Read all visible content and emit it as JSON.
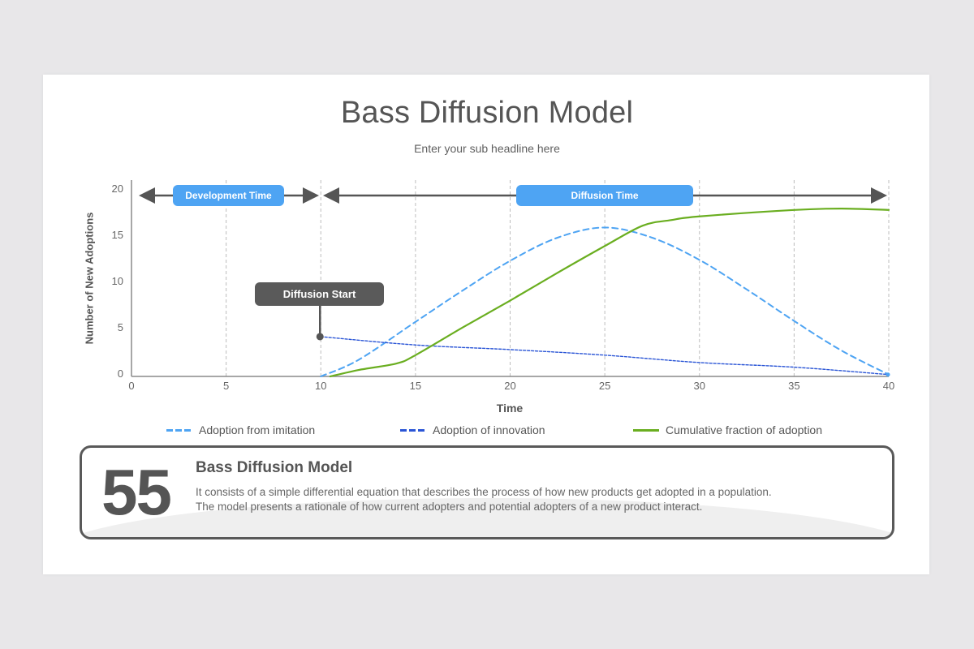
{
  "slide": {
    "title": "Bass Diffusion Model",
    "subtitle": "Enter your sub headline here"
  },
  "annotations": {
    "development_time": "Development Time",
    "diffusion_time": "Diffusion Time",
    "diffusion_start": "Diffusion Start"
  },
  "legend": {
    "items": [
      {
        "label": "Adoption from imitation",
        "color": "#4ea4f3",
        "style": "dashed"
      },
      {
        "label": "Adoption of innovation",
        "color": "#2a55d6",
        "style": "dotted"
      },
      {
        "label": "Cumulative fraction of adoption",
        "color": "#6aae20",
        "style": "solid"
      }
    ]
  },
  "info_box": {
    "number": "55",
    "title": "Bass Diffusion Model",
    "line1": "It consists of a simple differential equation that describes the process of how new products get adopted in a population.",
    "line2": "The model presents a rationale of how current adopters and potential adopters of a new product interact."
  },
  "colors": {
    "accent_blue": "#4ea4f3",
    "dark_gray": "#5a5a5a",
    "green": "#6aae20",
    "innovation_blue": "#2a55d6"
  },
  "chart_data": {
    "type": "line",
    "title": "Bass Diffusion Model",
    "xlabel": "Time",
    "ylabel": "Number of New Adoptions",
    "xlim": [
      0,
      40
    ],
    "ylim": [
      0,
      20
    ],
    "x_ticks": [
      0,
      5,
      10,
      15,
      20,
      25,
      30,
      35,
      40
    ],
    "y_ticks": [
      0,
      5,
      10,
      15,
      20
    ],
    "grid": "vertical dashed",
    "legend_position": "bottom",
    "series": [
      {
        "name": "Adoption from imitation",
        "style": "dashed",
        "color": "#4ea4f3",
        "points": [
          [
            10,
            0
          ],
          [
            12,
            1.8
          ],
          [
            15,
            5.9
          ],
          [
            17.5,
            9.3
          ],
          [
            20,
            12.5
          ],
          [
            22.5,
            15.0
          ],
          [
            25,
            16.1
          ],
          [
            27.5,
            15.0
          ],
          [
            30,
            12.6
          ],
          [
            32.5,
            9.4
          ],
          [
            35,
            6.0
          ],
          [
            37.5,
            2.8
          ],
          [
            40,
            0.2
          ]
        ]
      },
      {
        "name": "Adoption of innovation",
        "style": "dotted",
        "color": "#2a55d6",
        "points": [
          [
            10,
            4.3
          ],
          [
            15,
            3.4
          ],
          [
            20,
            2.9
          ],
          [
            25,
            2.3
          ],
          [
            30,
            1.5
          ],
          [
            35,
            1.0
          ],
          [
            40,
            0.2
          ]
        ]
      },
      {
        "name": "Cumulative fraction of adoption",
        "style": "solid",
        "color": "#6aae20",
        "points": [
          [
            10.5,
            0
          ],
          [
            12,
            0.7
          ],
          [
            14,
            1.4
          ],
          [
            15,
            2.3
          ],
          [
            17.5,
            5.3
          ],
          [
            20,
            8.2
          ],
          [
            22.5,
            11.2
          ],
          [
            25,
            14.1
          ],
          [
            27,
            16.3
          ],
          [
            28.5,
            16.9
          ],
          [
            30,
            17.3
          ],
          [
            35,
            18.0
          ],
          [
            37.5,
            18.15
          ],
          [
            40,
            18.0
          ]
        ]
      }
    ],
    "annotations": [
      {
        "label": "Development Time",
        "x_range": [
          0,
          10
        ]
      },
      {
        "label": "Diffusion Time",
        "x_range": [
          10,
          40
        ]
      },
      {
        "label": "Diffusion Start",
        "x": 10,
        "y": 4.3
      }
    ]
  }
}
